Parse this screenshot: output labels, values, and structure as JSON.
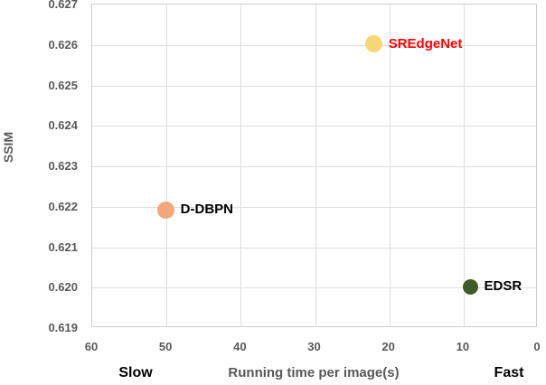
{
  "chart_data": {
    "type": "scatter",
    "title": "",
    "xlabel": "Running time per image(s)",
    "ylabel": "SSIM",
    "x_axis": {
      "min": 0,
      "max": 60,
      "reversed": true,
      "tick_labels": [
        "60",
        "50",
        "40",
        "30",
        "20",
        "10",
        "0"
      ]
    },
    "y_axis": {
      "min": 0.619,
      "max": 0.627,
      "tick_labels": [
        "0.627",
        "0.626",
        "0.625",
        "0.624",
        "0.623",
        "0.622",
        "0.621",
        "0.620",
        "0.619"
      ]
    },
    "grid": true,
    "legend": "none",
    "annotations": {
      "slow": "Slow",
      "fast": "Fast"
    },
    "points": [
      {
        "label": "SREdgeNet",
        "x": 22,
        "y": 0.626,
        "color": "#F8D575",
        "label_color": "#FF0000",
        "size": 19
      },
      {
        "label": "D-DBPN",
        "x": 50,
        "y": 0.6219,
        "color": "#F4A87A",
        "label_color": "#000000",
        "size": 19
      },
      {
        "label": "EDSR",
        "x": 9,
        "y": 0.62,
        "color": "#3E5C26",
        "label_color": "#000000",
        "size": 17
      }
    ],
    "colors": {
      "axis_text": "#595959",
      "gridline": "#dedede",
      "plot_border": "#cfcfcf",
      "annotation_text": "#000000"
    }
  }
}
